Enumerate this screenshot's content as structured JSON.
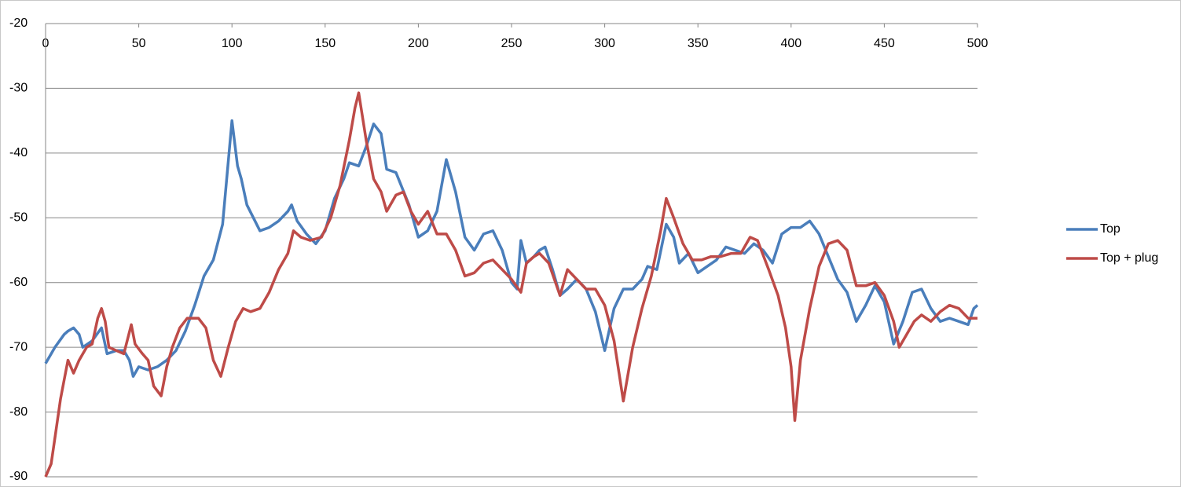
{
  "chart_data": {
    "type": "line",
    "xlim": [
      0,
      500
    ],
    "xticks": [
      0,
      50,
      100,
      150,
      200,
      250,
      300,
      350,
      400,
      450,
      500
    ],
    "ylim": [
      -90,
      -20
    ],
    "yticks": [
      -20,
      -30,
      -40,
      -50,
      -60,
      -70,
      -80,
      -90
    ],
    "grid": true,
    "legend": "right",
    "series": [
      {
        "name": "Top",
        "color": "#4a7ebb",
        "x": [
          0,
          5,
          10,
          12,
          15,
          18,
          20,
          25,
          30,
          33,
          38,
          42,
          45,
          47,
          50,
          55,
          60,
          65,
          70,
          75,
          80,
          85,
          90,
          95,
          100,
          103,
          105,
          108,
          115,
          120,
          125,
          130,
          132,
          135,
          140,
          145,
          150,
          155,
          160,
          163,
          168,
          172,
          176,
          180,
          183,
          188,
          195,
          200,
          205,
          210,
          215,
          220,
          225,
          230,
          235,
          240,
          245,
          250,
          253,
          255,
          258,
          262,
          265,
          268,
          272,
          276,
          280,
          285,
          290,
          295,
          300,
          305,
          310,
          315,
          320,
          323,
          328,
          333,
          337,
          340,
          345,
          350,
          355,
          360,
          365,
          370,
          375,
          380,
          385,
          390,
          395,
          400,
          405,
          410,
          415,
          420,
          425,
          430,
          435,
          440,
          445,
          450,
          455,
          460,
          465,
          470,
          475,
          480,
          485,
          490,
          495,
          498,
          500
        ],
        "values": [
          -72.5,
          -70,
          -68,
          -67.5,
          -67,
          -68,
          -70,
          -69,
          -67,
          -71,
          -70.5,
          -70.5,
          -72,
          -74.5,
          -73,
          -73.5,
          -73,
          -72,
          -70.5,
          -67.5,
          -63.5,
          -59,
          -56.5,
          -51,
          -35,
          -42,
          -44,
          -48,
          -52,
          -51.5,
          -50.5,
          -49,
          -48,
          -50.5,
          -52.5,
          -54,
          -52,
          -47,
          -44,
          -41.5,
          -42,
          -39,
          -35.5,
          -37,
          -42.5,
          -43,
          -48,
          -53,
          -52,
          -49,
          -41,
          -46,
          -53,
          -55,
          -52.5,
          -52,
          -55,
          -60,
          -61,
          -53.5,
          -57,
          -56,
          -55,
          -54.5,
          -58,
          -62,
          -61,
          -59.5,
          -61,
          -64.5,
          -70.5,
          -64,
          -61,
          -61,
          -59.5,
          -57.5,
          -58,
          -51,
          -53,
          -57,
          -55.5,
          -58.5,
          -57.5,
          -56.5,
          -54.5,
          -55,
          -55.5,
          -54,
          -55,
          -57,
          -52.5,
          -51.5,
          -51.5,
          -50.5,
          -52.5,
          -56,
          -59.5,
          -61.5,
          -66,
          -63.5,
          -60.5,
          -63,
          -69.5,
          -66,
          -61.5,
          -61,
          -64,
          -66,
          -65.5,
          -66,
          -66.5,
          -64,
          -63.5
        ]
      },
      {
        "name": "Top + plug",
        "color": "#be4b48",
        "x": [
          0,
          3,
          5,
          8,
          10,
          12,
          15,
          18,
          22,
          25,
          28,
          30,
          32,
          34,
          38,
          42,
          46,
          48,
          52,
          55,
          58,
          62,
          65,
          68,
          72,
          76,
          82,
          86,
          90,
          94,
          98,
          102,
          106,
          110,
          115,
          120,
          125,
          130,
          133,
          137,
          142,
          148,
          153,
          158,
          163,
          166,
          168,
          172,
          176,
          180,
          183,
          188,
          192,
          196,
          200,
          205,
          210,
          215,
          220,
          225,
          230,
          235,
          240,
          245,
          250,
          255,
          258,
          262,
          265,
          270,
          276,
          280,
          285,
          290,
          295,
          300,
          305,
          310,
          315,
          320,
          325,
          330,
          333,
          337,
          342,
          347,
          352,
          357,
          362,
          368,
          373,
          378,
          382,
          388,
          393,
          397,
          400,
          402,
          405,
          410,
          415,
          420,
          425,
          430,
          435,
          440,
          445,
          450,
          455,
          458,
          462,
          466,
          470,
          475,
          480,
          485,
          490,
          495,
          500
        ],
        "values": [
          -90,
          -88,
          -84,
          -78,
          -75,
          -72,
          -74,
          -72,
          -70,
          -69.5,
          -65.5,
          -64,
          -66,
          -70,
          -70.5,
          -71,
          -66.5,
          -69.5,
          -71,
          -72,
          -76,
          -77.5,
          -73,
          -70,
          -67,
          -65.5,
          -65.5,
          -67,
          -72,
          -74.5,
          -70,
          -66,
          -64,
          -64.5,
          -64,
          -61.5,
          -58,
          -55.5,
          -52,
          -53,
          -53.5,
          -53,
          -50,
          -45,
          -38,
          -33,
          -30.7,
          -38,
          -44,
          -46,
          -49,
          -46.5,
          -46,
          -49,
          -51,
          -49,
          -52.5,
          -52.5,
          -55,
          -59,
          -58.5,
          -57,
          -56.5,
          -58,
          -59.5,
          -61.5,
          -57,
          -56,
          -55.5,
          -57,
          -62,
          -58,
          -59.5,
          -61,
          -61,
          -63.5,
          -69,
          -78.3,
          -70,
          -64,
          -59,
          -52,
          -47,
          -50,
          -54,
          -56.5,
          -56.5,
          -56,
          -56,
          -55.5,
          -55.5,
          -53,
          -53.5,
          -58,
          -62,
          -67,
          -73,
          -81.3,
          -72,
          -64,
          -57.5,
          -54,
          -53.5,
          -55,
          -60.5,
          -60.5,
          -60,
          -62,
          -66,
          -70,
          -68,
          -66,
          -65,
          -66,
          -64.5,
          -63.5,
          -64,
          -65.5,
          -65.5
        ]
      }
    ]
  }
}
